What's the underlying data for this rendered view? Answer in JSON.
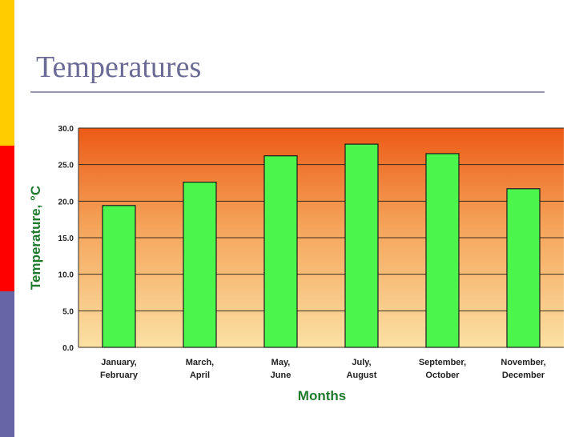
{
  "slide": {
    "title": "Temperatures"
  },
  "colors": {
    "accent_yellow": "#ffcc00",
    "accent_red": "#ff0000",
    "accent_purple": "#6666a6",
    "bar_fill": "#4cf54c",
    "axis_title": "#1f7a2e",
    "gradient_top": "#ec5a16",
    "gradient_bottom": "#fbe1a4"
  },
  "chart_data": {
    "type": "bar",
    "title": "",
    "xlabel": "Months",
    "ylabel": "Temperature, °C",
    "ylim": [
      0,
      30
    ],
    "y_ticks": [
      "0.0",
      "5.0",
      "10.0",
      "15.0",
      "20.0",
      "25.0",
      "30.0"
    ],
    "grid": true,
    "categories": [
      [
        "January,",
        "February"
      ],
      [
        "March,",
        "April"
      ],
      [
        "May,",
        "June"
      ],
      [
        "July,",
        "August"
      ],
      [
        "September,",
        "October"
      ],
      [
        "November,",
        "December"
      ]
    ],
    "values": [
      19.4,
      22.6,
      26.2,
      27.8,
      26.5,
      21.7
    ]
  }
}
